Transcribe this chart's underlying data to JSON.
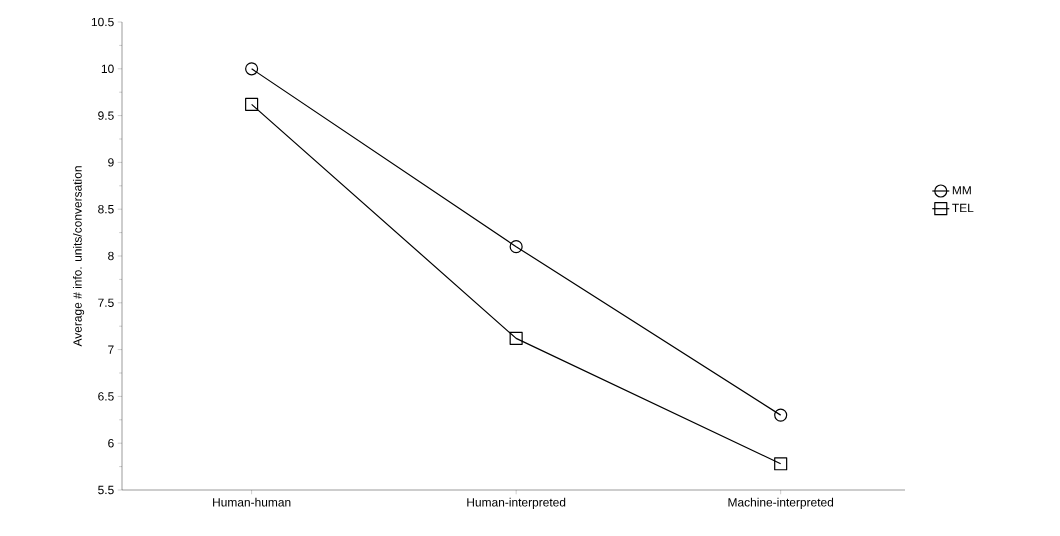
{
  "chart_data": {
    "type": "line",
    "ylabel": "Average # info. units/conversation",
    "categories": [
      "Human-human",
      "Human-interpreted",
      "Machine-interpreted"
    ],
    "series": [
      {
        "name": "MM",
        "color": "#000000",
        "marker": "circle",
        "values": [
          10.0,
          8.1,
          6.3
        ]
      },
      {
        "name": "TEL",
        "color": "#000000",
        "marker": "square",
        "values": [
          9.62,
          7.12,
          5.78
        ]
      }
    ],
    "ylim": [
      5.5,
      10.5
    ],
    "yticks": [
      5.5,
      6,
      6.5,
      7,
      7.5,
      8,
      8.5,
      9,
      9.5,
      10,
      10.5
    ],
    "legend": "right",
    "grid": false,
    "line_style": "solid"
  }
}
